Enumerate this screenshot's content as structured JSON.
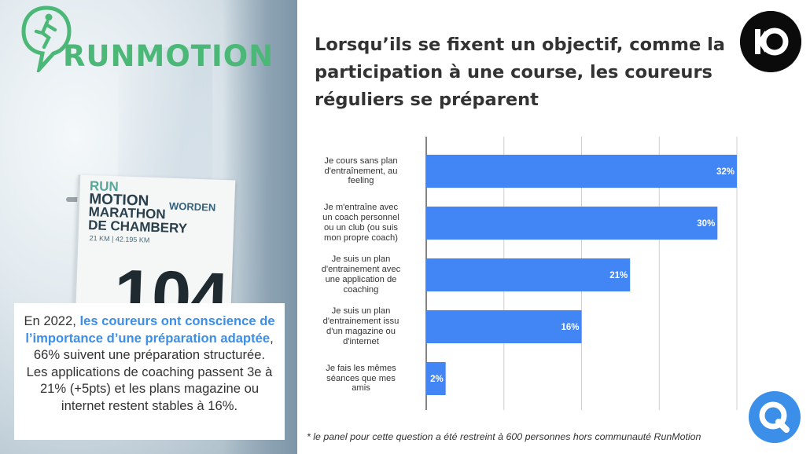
{
  "photo": {
    "brand_name": "RUNMOTION",
    "bib": {
      "line1": "RUN",
      "line2": "MOTION",
      "line3": "MARATHON",
      "line4": "DE CHAMBERY",
      "distances": "21 KM | 42.195 KM",
      "sponsor": "WORDEN",
      "number": "104"
    }
  },
  "summary": {
    "intro": "En 2022, ",
    "highlight": "les coureurs ont conscience de l’importance d’une préparation adaptée",
    "rest": ", 66% suivent une préparation structurée.",
    "line2": "Les applications de coaching passent 3e à 21% (+5pts) et les plans magazine ou internet restent stables à 16%."
  },
  "title": "Lorsqu’ils se fixent un objectif, comme la participation à une course, les coureurs réguliers se préparent",
  "footnote": "* le panel pour cette question a été restreint à 600 personnes hors communauté RunMotion",
  "chart_data": {
    "type": "bar",
    "orientation": "horizontal",
    "title": "Lorsqu’ils se fixent un objectif, comme la participation à une course, les coureurs réguliers se préparent",
    "categories": [
      "Je cours sans plan d'entraînement, au feeling",
      "Je m'entraîne avec un coach personnel ou un club (ou suis mon propre coach)",
      "Je suis un plan d'entrainement avec une application de coaching",
      "Je suis un plan d'entrainement issu d'un magazine ou d'internet",
      "Je fais les mêmes séances que mes amis"
    ],
    "category_lines": [
      [
        "Je cours sans plan",
        "d'entraînement, au",
        "feeling"
      ],
      [
        "Je m'entraîne avec",
        "un coach personnel",
        "ou un club (ou suis",
        "mon propre coach)"
      ],
      [
        "Je suis un plan",
        "d'entrainement avec",
        "une application de",
        "coaching"
      ],
      [
        "Je suis un plan",
        "d'entrainement issu",
        "d'un magazine ou",
        "d'internet"
      ],
      [
        "Je fais les mêmes",
        "séances que mes",
        "amis"
      ]
    ],
    "values": [
      32,
      30,
      21,
      16,
      2
    ],
    "value_labels": [
      "32%",
      "30%",
      "21%",
      "16%",
      "2%"
    ],
    "xlim": [
      0,
      32
    ],
    "grid": true,
    "legend": "none",
    "bar_color": "#4285f4"
  },
  "colors": {
    "accent": "#3b8fe8",
    "brand_green": "#4cb877",
    "bar": "#4285f4"
  },
  "icons": {
    "corner": "ko-logo-icon",
    "bottom": "q-logo-icon",
    "brand": "runner-chat-logo-icon"
  }
}
